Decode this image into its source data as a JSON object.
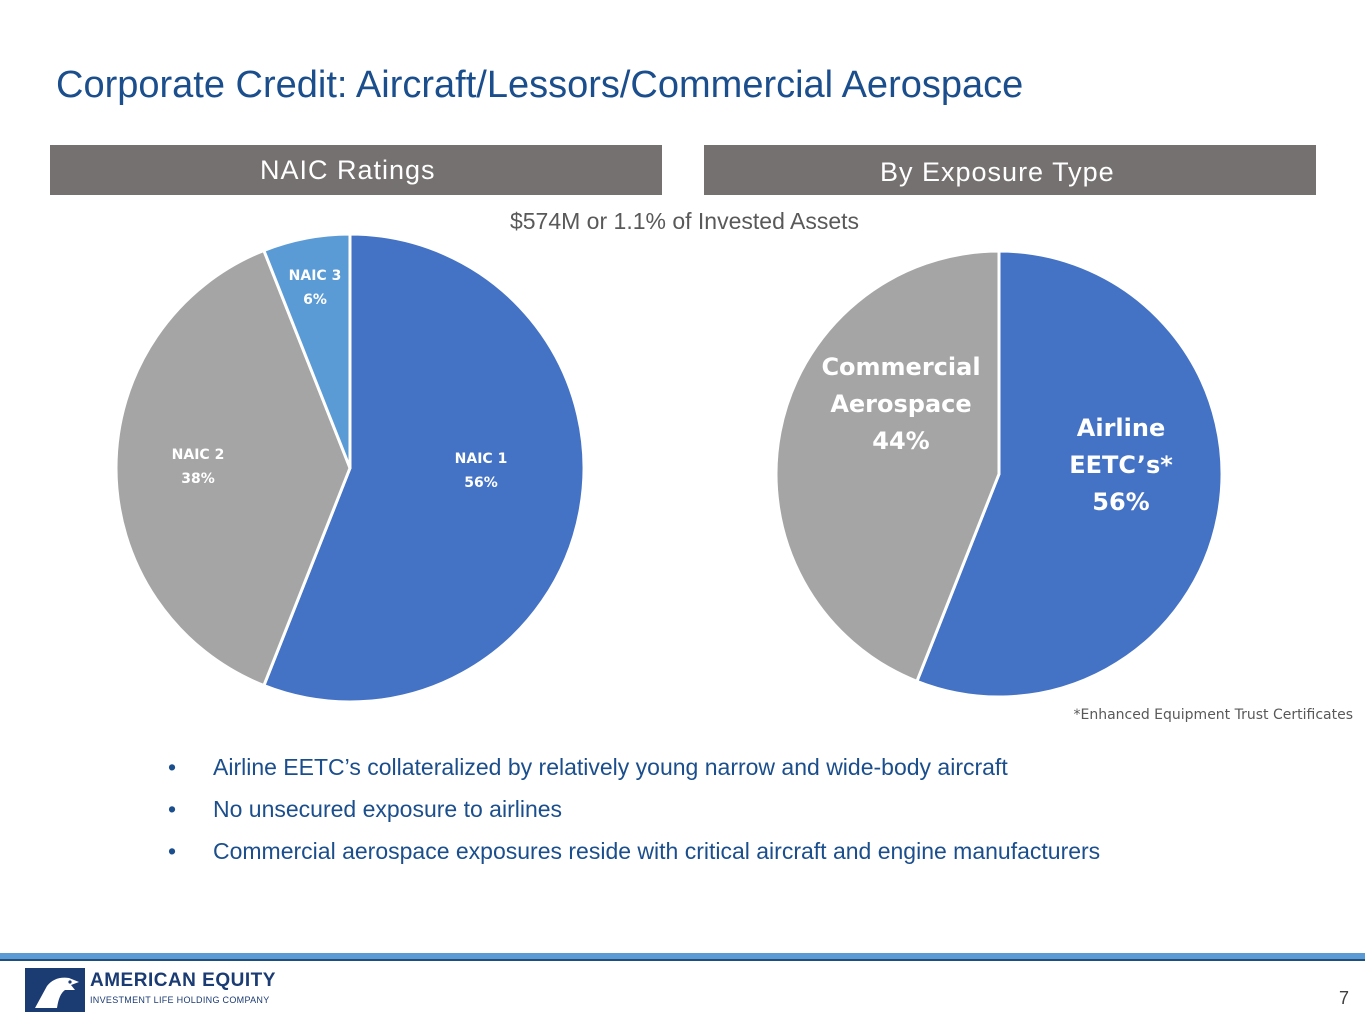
{
  "title": "Corporate Credit: Aircraft/Lessors/Commercial Aerospace",
  "sections": {
    "left": "NAIC Ratings",
    "right": "By Exposure Type"
  },
  "subtitle": "$574M or 1.1% of Invested Assets",
  "chart_data": [
    {
      "type": "pie",
      "title": "NAIC Ratings",
      "slices": [
        {
          "label": "NAIC 1",
          "value": 56,
          "display": "56%",
          "color": "#4472c4"
        },
        {
          "label": "NAIC 2",
          "value": 38,
          "display": "38%",
          "color": "#a5a5a5"
        },
        {
          "label": "NAIC 3",
          "value": 6,
          "display": "6%",
          "color": "#5b9bd5"
        }
      ],
      "start_angle_deg": 0,
      "direction": "clockwise"
    },
    {
      "type": "pie",
      "title": "By Exposure Type",
      "slices": [
        {
          "label": "Airline EETC’s*",
          "value": 56,
          "display": "56%",
          "color": "#4472c4"
        },
        {
          "label": "Commercial Aerospace",
          "value": 44,
          "display": "44%",
          "color": "#a5a5a5"
        }
      ],
      "start_angle_deg": 0,
      "direction": "clockwise"
    }
  ],
  "footnote": "*Enhanced Equipment Trust Certificates",
  "bullets": [
    "Airline EETC’s collateralized by relatively young narrow and wide-body aircraft",
    "No unsecured exposure to airlines",
    "Commercial aerospace exposures reside with critical aircraft and engine manufacturers"
  ],
  "logo": {
    "name": "AMERICAN EQUITY",
    "tagline": "INVESTMENT LIFE HOLDING COMPANY"
  },
  "page_number": "7",
  "colors": {
    "title": "#1b4e8c",
    "section_bar": "#767171",
    "accent_line": "#5b9bd5"
  }
}
